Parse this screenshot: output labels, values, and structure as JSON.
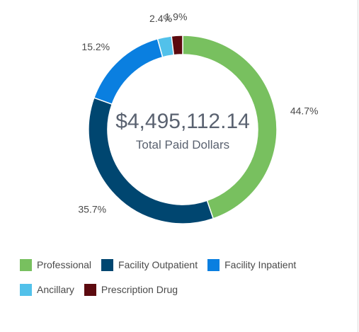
{
  "chart_data": {
    "type": "pie",
    "style": "donut",
    "start_at": "top, clockwise",
    "center": {
      "value": "$4,495,112.14",
      "caption": "Total Paid Dollars"
    },
    "slices": [
      {
        "name": "Professional",
        "percent": 44.7,
        "label": "44.7%",
        "color": "#78c05f"
      },
      {
        "name": "Facility Outpatient",
        "percent": 35.7,
        "label": "35.7%",
        "color": "#004670"
      },
      {
        "name": "Facility Inpatient",
        "percent": 15.2,
        "label": "15.2%",
        "color": "#0a7fe0"
      },
      {
        "name": "Ancillary",
        "percent": 2.4,
        "label": "2.4%",
        "color": "#52c1ea"
      },
      {
        "name": "Prescription Drug",
        "percent": 1.9,
        "label": "1.9%",
        "color": "#5c0a0f"
      }
    ],
    "legend": {
      "placement": "bottom",
      "rows": [
        [
          "Professional",
          "Facility Outpatient",
          "Facility Inpatient"
        ],
        [
          "Ancillary",
          "Prescription Drug"
        ]
      ]
    }
  }
}
